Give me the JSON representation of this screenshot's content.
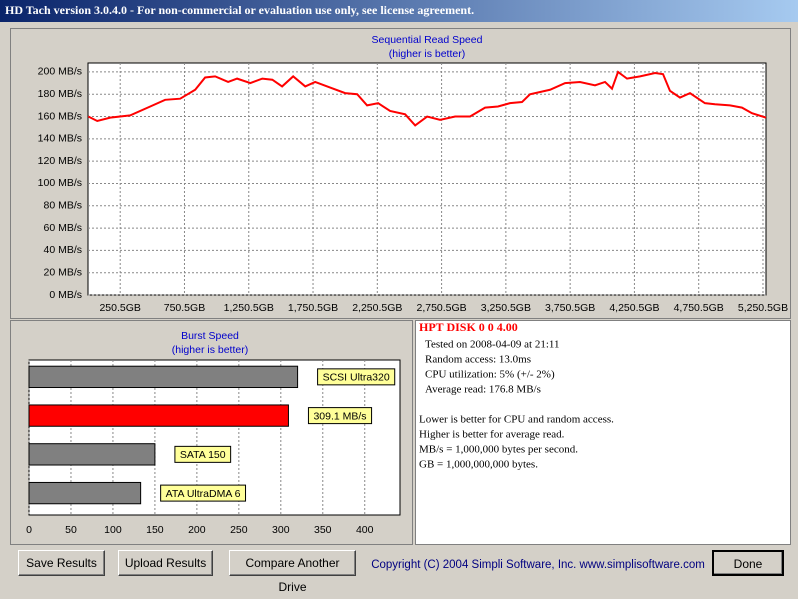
{
  "window_title": "HD Tach version 3.0.4.0  - For non-commercial or evaluation use only, see license agreement.",
  "chart_data": [
    {
      "type": "line",
      "title": "Sequential Read Speed",
      "subtitle": "(higher is better)",
      "color": "#ff0000",
      "grid": true,
      "x": [
        2,
        72,
        173,
        250,
        328,
        484,
        600,
        717,
        834,
        911,
        989,
        1090,
        1160,
        1263,
        1356,
        1434,
        1510,
        1596,
        1690,
        1767,
        1884,
        2000,
        2094,
        2171,
        2257,
        2350,
        2467,
        2545,
        2638,
        2739,
        2856,
        2972,
        3089,
        3189,
        3283,
        3376,
        3438,
        3594,
        3711,
        3827,
        3944,
        4022,
        4076,
        4123,
        4193,
        4294,
        4411,
        4473,
        4527,
        4605,
        4683,
        4799,
        4877,
        4994,
        5087,
        5165,
        5274
      ],
      "values": [
        160,
        156,
        159,
        160,
        161,
        169,
        175,
        176,
        184,
        195,
        196,
        191,
        194,
        190,
        194,
        193,
        187,
        196,
        187,
        191,
        186,
        181,
        180,
        170,
        172,
        165,
        162,
        152,
        160,
        157,
        160,
        160,
        168,
        169,
        172,
        173,
        180,
        184,
        190,
        191,
        188,
        191,
        185,
        200,
        194,
        196,
        199,
        198,
        183,
        177,
        181,
        172,
        171,
        170,
        168,
        163,
        159
      ],
      "xlim": [
        0,
        5274
      ],
      "xticks": [
        {
          "value": 250.5,
          "label": "250.5GB"
        },
        {
          "value": 750.5,
          "label": "750.5GB"
        },
        {
          "value": 1250.5,
          "label": "1,250.5GB"
        },
        {
          "value": 1750.5,
          "label": "1,750.5GB"
        },
        {
          "value": 2250.5,
          "label": "2,250.5GB"
        },
        {
          "value": 2750.5,
          "label": "2,750.5GB"
        },
        {
          "value": 3250.5,
          "label": "3,250.5GB"
        },
        {
          "value": 3750.5,
          "label": "3,750.5GB"
        },
        {
          "value": 4250.5,
          "label": "4,250.5GB"
        },
        {
          "value": 4750.5,
          "label": "4,750.5GB"
        },
        {
          "value": 5250.5,
          "label": "5,250.5GB"
        }
      ],
      "ylim": [
        0,
        208
      ],
      "yticks": [
        {
          "value": 0,
          "label": "0 MB/s"
        },
        {
          "value": 20,
          "label": "20 MB/s"
        },
        {
          "value": 40,
          "label": "40 MB/s"
        },
        {
          "value": 60,
          "label": "60 MB/s"
        },
        {
          "value": 80,
          "label": "80 MB/s"
        },
        {
          "value": 100,
          "label": "100 MB/s"
        },
        {
          "value": 120,
          "label": "120 MB/s"
        },
        {
          "value": 140,
          "label": "140 MB/s"
        },
        {
          "value": 160,
          "label": "160 MB/s"
        },
        {
          "value": 180,
          "label": "180 MB/s"
        },
        {
          "value": 200,
          "label": "200 MB/s"
        }
      ]
    },
    {
      "type": "hbar",
      "title": "Burst Speed",
      "subtitle": "(higher is better)",
      "grid": true,
      "categories": [
        "SCSI Ultra320",
        null,
        "SATA 150",
        "ATA UltraDMA 6"
      ],
      "values": [
        320,
        309.1,
        150,
        133
      ],
      "value_labels": [
        null,
        "309.1 MB/s",
        null,
        null
      ],
      "colors": [
        "#808080",
        "#ff0000",
        "#808080",
        "#808080"
      ],
      "xlim": [
        0,
        442
      ],
      "xticks": [
        0,
        50,
        100,
        150,
        200,
        250,
        300,
        350,
        400
      ]
    }
  ],
  "info": {
    "heading": "HPT DISK 0 0 4.00",
    "lines": [
      "Tested on 2008-04-09 at 21:11",
      "Random access: 13.0ms",
      "CPU utilization: 5% (+/- 2%)",
      "Average read: 176.8 MB/s"
    ],
    "notes": [
      "Lower is better for CPU and random access.",
      "Higher is better for average read.",
      "MB/s = 1,000,000 bytes per second.",
      "GB = 1,000,000,000 bytes."
    ]
  },
  "buttons": [
    "Save Results",
    "Upload Results",
    "Compare Another Drive",
    "Done"
  ],
  "copyright": "Copyright (C) 2004 Simpli Software, Inc. www.simplisoftware.com"
}
